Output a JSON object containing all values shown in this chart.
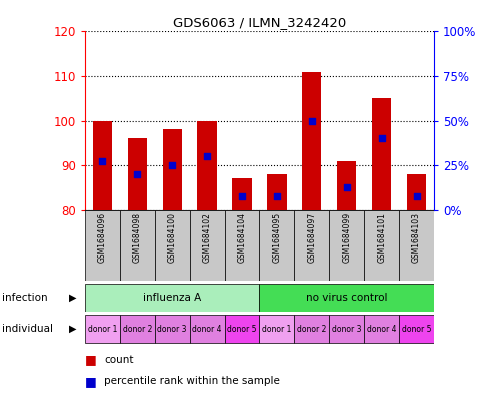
{
  "title": "GDS6063 / ILMN_3242420",
  "samples": [
    "GSM1684096",
    "GSM1684098",
    "GSM1684100",
    "GSM1684102",
    "GSM1684104",
    "GSM1684095",
    "GSM1684097",
    "GSM1684099",
    "GSM1684101",
    "GSM1684103"
  ],
  "count_values": [
    100,
    96,
    98,
    100,
    87,
    88,
    111,
    91,
    105,
    88
  ],
  "percentile_values": [
    91,
    88,
    90,
    92,
    83,
    83,
    100,
    85,
    96,
    83
  ],
  "y_min": 80,
  "y_max": 120,
  "y_ticks": [
    80,
    90,
    100,
    110,
    120
  ],
  "y2_ticks": [
    0,
    25,
    50,
    75,
    100
  ],
  "bar_color": "#CC0000",
  "percentile_color": "#0000CC",
  "bg_color": "#FFFFFF",
  "label_bg_color": "#C8C8C8",
  "inf_color_1": "#AAEEBB",
  "inf_color_2": "#44DD55",
  "ind_colors": [
    "#F0A0F0",
    "#E080E0",
    "#E080E0",
    "#E080E0",
    "#EE44EE",
    "#F0A0F0",
    "#E080E0",
    "#E080E0",
    "#E080E0",
    "#EE44EE"
  ],
  "infection_labels": [
    "influenza A",
    "no virus control"
  ],
  "infection_ranges": [
    [
      0,
      4
    ],
    [
      5,
      9
    ]
  ],
  "individual_labels": [
    "donor 1",
    "donor 2",
    "donor 3",
    "donor 4",
    "donor 5",
    "donor 1",
    "donor 2",
    "donor 3",
    "donor 4",
    "donor 5"
  ]
}
